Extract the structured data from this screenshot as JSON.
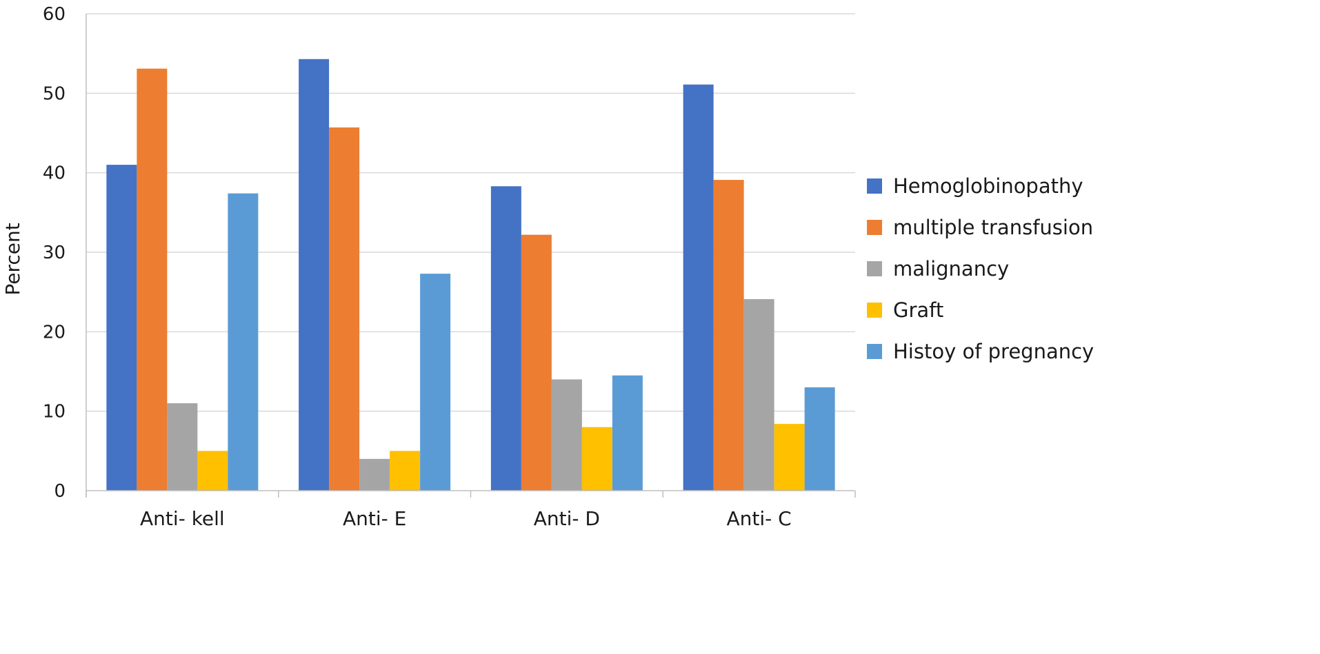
{
  "chart_data": {
    "type": "bar",
    "ylabel": "Percent",
    "ylim": [
      0,
      60
    ],
    "ytick_step": 10,
    "yticks": [
      "0",
      "10",
      "20",
      "30",
      "40",
      "50",
      "60"
    ],
    "grid": true,
    "legend_position": "right",
    "categories": [
      "Anti- kell",
      "Anti- E",
      "Anti- D",
      "Anti- C"
    ],
    "series": [
      {
        "name": "Hemoglobinopathy",
        "color": "#4472C4",
        "values": [
          41,
          54.3,
          38.3,
          51.1
        ]
      },
      {
        "name": "multiple transfusion",
        "color": "#ED7D31",
        "values": [
          53.1,
          45.7,
          32.2,
          39.1
        ]
      },
      {
        "name": "malignancy",
        "color": "#A5A5A5",
        "values": [
          11,
          4,
          14,
          24.1
        ]
      },
      {
        "name": "Graft",
        "color": "#FFC000",
        "values": [
          5,
          5,
          8,
          8.4
        ]
      },
      {
        "name": "Histoy of pregnancy",
        "color": "#5B9BD5",
        "values": [
          37.4,
          27.3,
          14.5,
          13
        ]
      }
    ]
  }
}
